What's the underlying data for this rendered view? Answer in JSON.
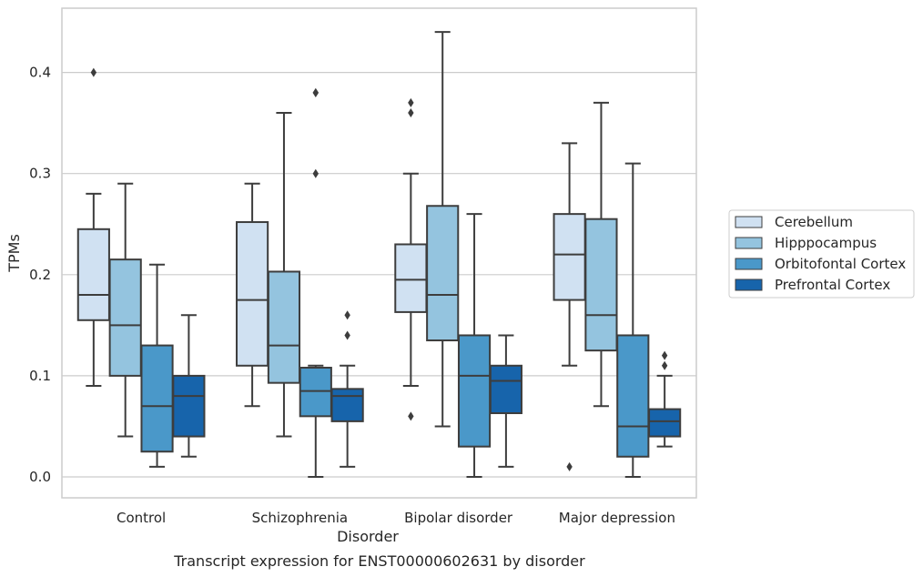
{
  "chart_data": {
    "type": "boxplot",
    "caption": "Transcript expression for ENST00000602631 by disorder",
    "xlabel": "Disorder",
    "ylabel": "TPMs",
    "ylim": [
      -0.02,
      0.46
    ],
    "yticks": [
      0.0,
      0.1,
      0.2,
      0.3,
      0.4
    ],
    "ytick_labels": [
      "0.0",
      "0.1",
      "0.2",
      "0.3",
      "0.4"
    ],
    "grid": "horizontal",
    "legend_position": "right",
    "categories": [
      "Control",
      "Schizophrenia",
      "Bipolar disorder",
      "Major depression"
    ],
    "series": [
      {
        "name": "Cerebellum",
        "color": "#d0e1f2",
        "boxes": [
          {
            "whisker_low": 0.09,
            "q1": 0.155,
            "median": 0.18,
            "q3": 0.245,
            "whisker_high": 0.28,
            "outliers": [
              0.4
            ]
          },
          {
            "whisker_low": 0.07,
            "q1": 0.11,
            "median": 0.175,
            "q3": 0.252,
            "whisker_high": 0.29,
            "outliers": []
          },
          {
            "whisker_low": 0.09,
            "q1": 0.163,
            "median": 0.195,
            "q3": 0.23,
            "whisker_high": 0.3,
            "outliers": [
              0.37,
              0.36,
              0.06
            ]
          },
          {
            "whisker_low": 0.11,
            "q1": 0.175,
            "median": 0.22,
            "q3": 0.26,
            "whisker_high": 0.33,
            "outliers": [
              0.01
            ]
          }
        ]
      },
      {
        "name": "Hipppocampus",
        "color": "#94c4df",
        "boxes": [
          {
            "whisker_low": 0.04,
            "q1": 0.1,
            "median": 0.15,
            "q3": 0.215,
            "whisker_high": 0.29,
            "outliers": []
          },
          {
            "whisker_low": 0.04,
            "q1": 0.093,
            "median": 0.13,
            "q3": 0.203,
            "whisker_high": 0.36,
            "outliers": []
          },
          {
            "whisker_low": 0.05,
            "q1": 0.135,
            "median": 0.18,
            "q3": 0.268,
            "whisker_high": 0.44,
            "outliers": []
          },
          {
            "whisker_low": 0.07,
            "q1": 0.125,
            "median": 0.16,
            "q3": 0.255,
            "whisker_high": 0.37,
            "outliers": []
          }
        ]
      },
      {
        "name": "Orbitofontal Cortex",
        "color": "#4a98c9",
        "boxes": [
          {
            "whisker_low": 0.01,
            "q1": 0.025,
            "median": 0.07,
            "q3": 0.13,
            "whisker_high": 0.21,
            "outliers": []
          },
          {
            "whisker_low": 0.0,
            "q1": 0.06,
            "median": 0.085,
            "q3": 0.108,
            "whisker_high": 0.11,
            "outliers": [
              0.38,
              0.38,
              0.3
            ]
          },
          {
            "whisker_low": 0.0,
            "q1": 0.03,
            "median": 0.1,
            "q3": 0.14,
            "whisker_high": 0.26,
            "outliers": []
          },
          {
            "whisker_low": 0.0,
            "q1": 0.02,
            "median": 0.05,
            "q3": 0.14,
            "whisker_high": 0.31,
            "outliers": []
          }
        ]
      },
      {
        "name": "Prefrontal Cortex",
        "color": "#1764ab",
        "boxes": [
          {
            "whisker_low": 0.02,
            "q1": 0.04,
            "median": 0.08,
            "q3": 0.1,
            "whisker_high": 0.16,
            "outliers": []
          },
          {
            "whisker_low": 0.01,
            "q1": 0.055,
            "median": 0.08,
            "q3": 0.087,
            "whisker_high": 0.11,
            "outliers": [
              0.16,
              0.14
            ]
          },
          {
            "whisker_low": 0.01,
            "q1": 0.063,
            "median": 0.095,
            "q3": 0.11,
            "whisker_high": 0.14,
            "outliers": []
          },
          {
            "whisker_low": 0.03,
            "q1": 0.04,
            "median": 0.055,
            "q3": 0.067,
            "whisker_high": 0.1,
            "outliers": [
              0.12,
              0.11
            ]
          }
        ]
      }
    ]
  },
  "colors": {
    "edge": "#3d3d3d",
    "grid": "#cccccc",
    "frame": "#cccccc",
    "text": "#262626"
  }
}
